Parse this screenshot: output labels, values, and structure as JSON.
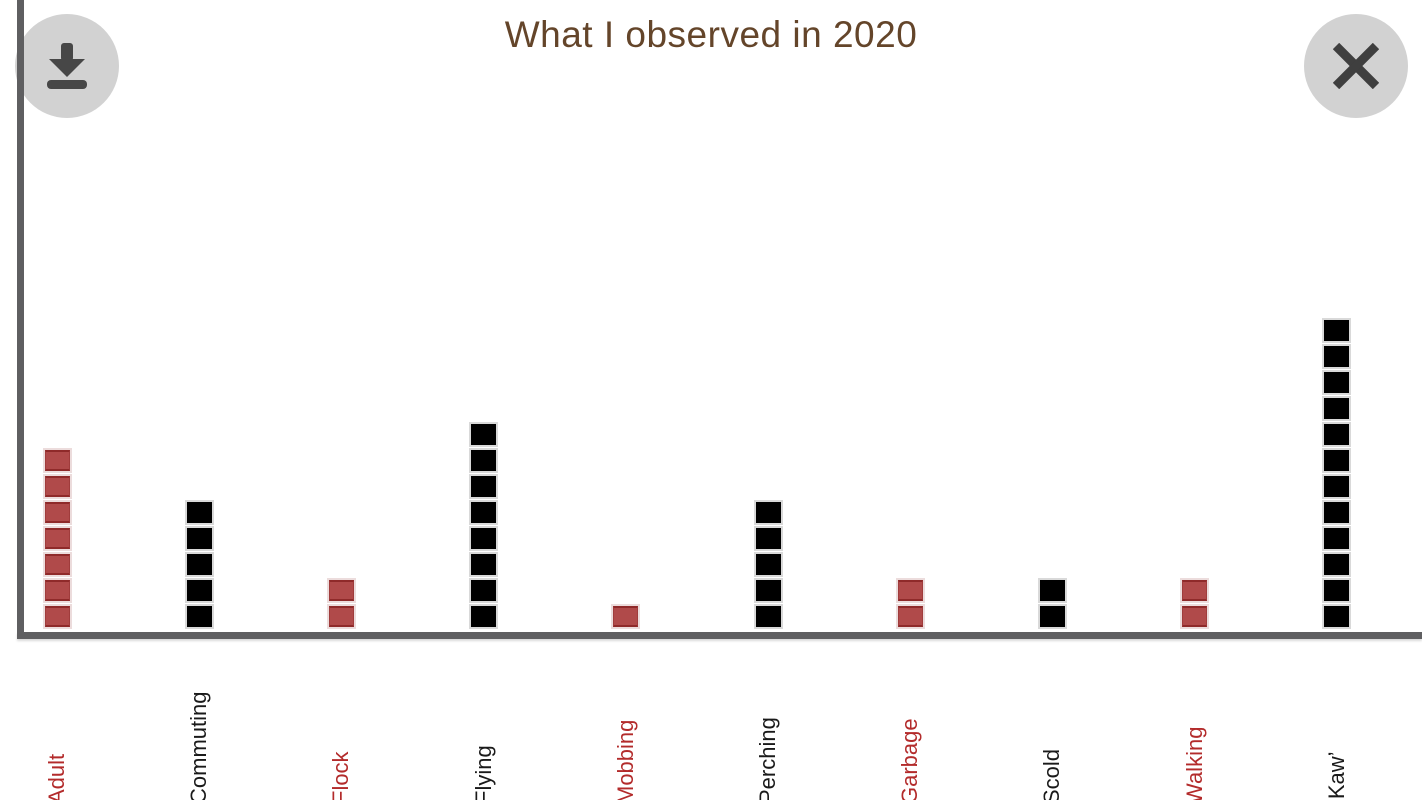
{
  "header": {
    "title": "What I observed in 2020"
  },
  "controls": {
    "download_icon": "download-arrow",
    "close_icon": "x"
  },
  "colors": {
    "title_text": "#64452a",
    "axis": "#5f5f61",
    "square_red": "#b04a4a",
    "square_red_border": "#8f2a2a",
    "square_black": "#000000",
    "label_red": "#b32b2b",
    "label_black": "#1a1a1a",
    "button_background": "#d2d2d2",
    "button_glyph": "#474747"
  },
  "chart_data": {
    "type": "bar",
    "subtype": "pictograph-stacked-squares",
    "title": "What I observed in 2020",
    "unit_per_square": 1,
    "categories": [
      "Adult",
      "Commuting",
      "Flock",
      "Flying",
      "Mobbing",
      "Perching",
      "Garbage",
      "Scold",
      "Walking",
      "‘Kaw’"
    ],
    "values": [
      7,
      5,
      2,
      8,
      1,
      5,
      2,
      2,
      2,
      12
    ],
    "series_colors": [
      "red",
      "black",
      "red",
      "black",
      "red",
      "black",
      "red",
      "black",
      "red",
      "black"
    ],
    "xlabel": "",
    "ylabel": "",
    "ylim": [
      0,
      12
    ],
    "grid": false,
    "legend": "none",
    "tick_label_rotation_degrees": 90
  }
}
